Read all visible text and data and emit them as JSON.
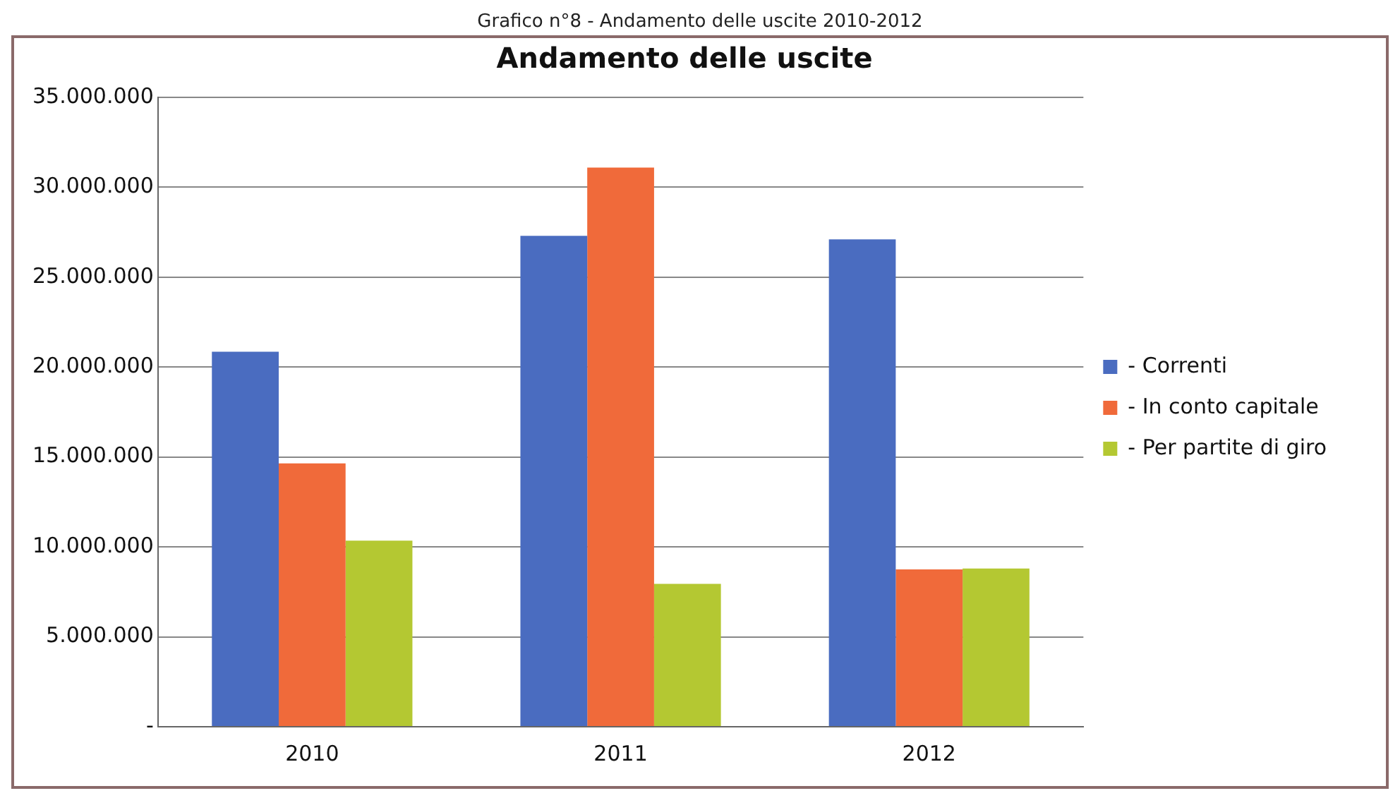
{
  "chart_data": {
    "type": "bar",
    "title": "Andamento delle uscite",
    "annotations": [
      "Grafico n°8 - Andamento delle uscite 2010-2012"
    ],
    "categories": [
      "2010",
      "2011",
      "2012"
    ],
    "series": [
      {
        "name": "- Correnti",
        "color": "#4a6cc0",
        "values": [
          20850000,
          27300000,
          27100000
        ]
      },
      {
        "name": "- In conto capitale",
        "color": "#f06a3a",
        "values": [
          14650000,
          31100000,
          8750000
        ]
      },
      {
        "name": "- Per partite di giro",
        "color": "#b4c832",
        "values": [
          10350000,
          7950000,
          8800000
        ]
      }
    ],
    "ylim": [
      0,
      35000000
    ],
    "yticks": [
      {
        "value": 0,
        "label": "-"
      },
      {
        "value": 5000000,
        "label": "5.000.000"
      },
      {
        "value": 10000000,
        "label": "10.000.000"
      },
      {
        "value": 15000000,
        "label": "15.000.000"
      },
      {
        "value": 20000000,
        "label": "20.000.000"
      },
      {
        "value": 25000000,
        "label": "25.000.000"
      },
      {
        "value": 30000000,
        "label": "30.000.000"
      },
      {
        "value": 35000000,
        "label": "35.000.000"
      }
    ],
    "grid": "y",
    "legend": "right"
  }
}
